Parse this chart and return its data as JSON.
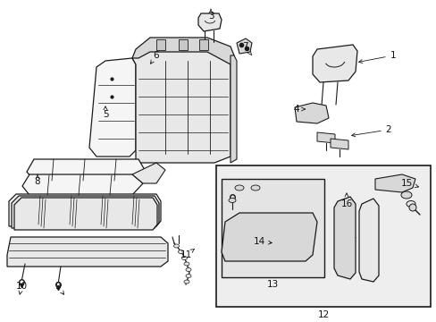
{
  "bg_color": "#ffffff",
  "figsize": [
    4.89,
    3.6
  ],
  "dpi": 100,
  "line_color": "#1a1a1a",
  "label_fontsize": 7.5,
  "fill_light": "#f5f5f5",
  "fill_mid": "#e8e8e8",
  "fill_dark": "#d8d8d8",
  "fill_gray": "#c8c8c8"
}
